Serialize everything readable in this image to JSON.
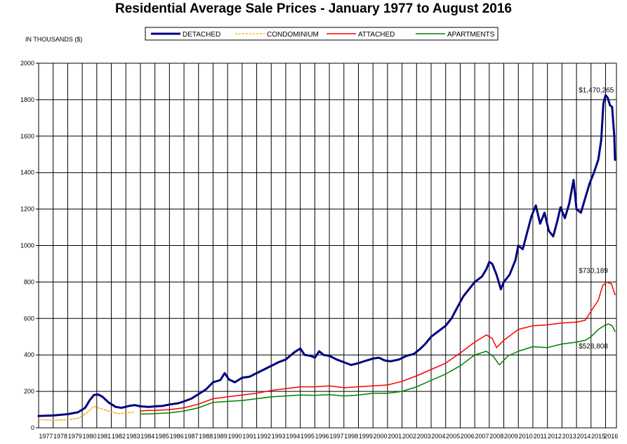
{
  "chart_data": {
    "type": "line",
    "title": "Residential Average Sale Prices  -  January 1977 to August 2016",
    "ylabel": "IN THOUSANDS ($)",
    "xlabel": "",
    "ylim": [
      0,
      2000
    ],
    "yticks": [
      0,
      200,
      400,
      600,
      800,
      1000,
      1200,
      1400,
      1600,
      1800,
      2000
    ],
    "xlim": [
      1977,
      2016.75
    ],
    "xticks": [
      "1977",
      "1978",
      "1979",
      "1980",
      "1981",
      "1982",
      "1983",
      "1984",
      "1985",
      "1986",
      "1987",
      "1988",
      "1989",
      "1990",
      "1991",
      "1992",
      "1993",
      "1994",
      "1995",
      "1996",
      "1997",
      "1998",
      "1999",
      "2000",
      "2001",
      "2002",
      "2003",
      "2004",
      "2005",
      "2006",
      "2007",
      "2008",
      "2009",
      "2010",
      "2011",
      "2012",
      "2013",
      "2014",
      "2015",
      "2016"
    ],
    "grid": true,
    "legend_position": "top-center",
    "series": [
      {
        "name": "DETACHED",
        "color": "#000080",
        "style": "solid-thick",
        "points": [
          [
            1977,
            65
          ],
          [
            1978,
            68
          ],
          [
            1979,
            75
          ],
          [
            1979.7,
            85
          ],
          [
            1980.2,
            110
          ],
          [
            1980.5,
            150
          ],
          [
            1980.8,
            180
          ],
          [
            1981.1,
            183
          ],
          [
            1981.4,
            170
          ],
          [
            1981.8,
            140
          ],
          [
            1982.3,
            115
          ],
          [
            1982.7,
            110
          ],
          [
            1983.2,
            120
          ],
          [
            1983.6,
            125
          ],
          [
            1984,
            118
          ],
          [
            1984.6,
            115
          ],
          [
            1985,
            118
          ],
          [
            1985.5,
            120
          ],
          [
            1986,
            128
          ],
          [
            1986.6,
            135
          ],
          [
            1987,
            145
          ],
          [
            1987.5,
            160
          ],
          [
            1988,
            185
          ],
          [
            1988.5,
            210
          ],
          [
            1989,
            250
          ],
          [
            1989.5,
            262
          ],
          [
            1989.8,
            300
          ],
          [
            1990.1,
            265
          ],
          [
            1990.5,
            250
          ],
          [
            1991,
            275
          ],
          [
            1991.5,
            280
          ],
          [
            1992,
            300
          ],
          [
            1992.5,
            320
          ],
          [
            1993,
            340
          ],
          [
            1993.5,
            360
          ],
          [
            1994,
            375
          ],
          [
            1994.3,
            395
          ],
          [
            1994.6,
            415
          ],
          [
            1995,
            435
          ],
          [
            1995.3,
            400
          ],
          [
            1995.7,
            395
          ],
          [
            1996,
            385
          ],
          [
            1996.3,
            420
          ],
          [
            1996.6,
            400
          ],
          [
            1997,
            395
          ],
          [
            1997.5,
            375
          ],
          [
            1998,
            360
          ],
          [
            1998.5,
            345
          ],
          [
            1999,
            355
          ],
          [
            1999.5,
            368
          ],
          [
            2000,
            380
          ],
          [
            2000.4,
            385
          ],
          [
            2000.8,
            370
          ],
          [
            2001.2,
            365
          ],
          [
            2001.8,
            375
          ],
          [
            2002.3,
            395
          ],
          [
            2002.8,
            405
          ],
          [
            2003.2,
            430
          ],
          [
            2003.6,
            460
          ],
          [
            2004,
            500
          ],
          [
            2004.5,
            530
          ],
          [
            2005,
            560
          ],
          [
            2005.4,
            600
          ],
          [
            2005.8,
            660
          ],
          [
            2006.2,
            720
          ],
          [
            2006.6,
            760
          ],
          [
            2007,
            800
          ],
          [
            2007.5,
            830
          ],
          [
            2007.8,
            870
          ],
          [
            2008,
            910
          ],
          [
            2008.2,
            900
          ],
          [
            2008.5,
            840
          ],
          [
            2008.8,
            760
          ],
          [
            2009,
            800
          ],
          [
            2009.4,
            840
          ],
          [
            2009.8,
            920
          ],
          [
            2010,
            1000
          ],
          [
            2010.3,
            980
          ],
          [
            2010.6,
            1070
          ],
          [
            2010.9,
            1160
          ],
          [
            2011.2,
            1220
          ],
          [
            2011.5,
            1120
          ],
          [
            2011.8,
            1180
          ],
          [
            2012.1,
            1080
          ],
          [
            2012.4,
            1050
          ],
          [
            2012.7,
            1140
          ],
          [
            2012.9,
            1210
          ],
          [
            2013.2,
            1150
          ],
          [
            2013.5,
            1230
          ],
          [
            2013.8,
            1360
          ],
          [
            2014,
            1200
          ],
          [
            2014.3,
            1180
          ],
          [
            2014.6,
            1260
          ],
          [
            2014.9,
            1340
          ],
          [
            2015.2,
            1400
          ],
          [
            2015.5,
            1470
          ],
          [
            2015.7,
            1580
          ],
          [
            2015.85,
            1780
          ],
          [
            2016,
            1825
          ],
          [
            2016.15,
            1810
          ],
          [
            2016.3,
            1770
          ],
          [
            2016.45,
            1760
          ],
          [
            2016.6,
            1600
          ],
          [
            2016.65,
            1470
          ]
        ]
      },
      {
        "name": "CONDOMINIUM",
        "color": "#FFA000",
        "style": "dashed",
        "points": [
          [
            1977,
            45
          ],
          [
            1978,
            42
          ],
          [
            1979,
            44
          ],
          [
            1979.7,
            52
          ],
          [
            1980.2,
            75
          ],
          [
            1980.5,
            95
          ],
          [
            1980.8,
            118
          ],
          [
            1981.1,
            110
          ],
          [
            1981.5,
            100
          ],
          [
            1982,
            88
          ],
          [
            1982.5,
            78
          ],
          [
            1983,
            82
          ],
          [
            1983.5,
            85
          ]
        ]
      },
      {
        "name": "ATTACHED",
        "color": "#FF0000",
        "style": "solid",
        "points": [
          [
            1984,
            92
          ],
          [
            1984.5,
            95
          ],
          [
            1985,
            95
          ],
          [
            1986,
            100
          ],
          [
            1987,
            110
          ],
          [
            1988,
            130
          ],
          [
            1989,
            160
          ],
          [
            1990,
            170
          ],
          [
            1991,
            180
          ],
          [
            1992,
            190
          ],
          [
            1993,
            205
          ],
          [
            1994,
            215
          ],
          [
            1995,
            225
          ],
          [
            1996,
            225
          ],
          [
            1997,
            230
          ],
          [
            1998,
            220
          ],
          [
            1999,
            225
          ],
          [
            2000,
            230
          ],
          [
            2001,
            235
          ],
          [
            2002,
            255
          ],
          [
            2003,
            285
          ],
          [
            2004,
            320
          ],
          [
            2005,
            355
          ],
          [
            2006,
            410
          ],
          [
            2007,
            470
          ],
          [
            2007.8,
            510
          ],
          [
            2008.2,
            490
          ],
          [
            2008.5,
            440
          ],
          [
            2009,
            480
          ],
          [
            2009.5,
            510
          ],
          [
            2010,
            540
          ],
          [
            2011,
            560
          ],
          [
            2012,
            565
          ],
          [
            2013,
            575
          ],
          [
            2014,
            580
          ],
          [
            2014.6,
            590
          ],
          [
            2015,
            640
          ],
          [
            2015.5,
            700
          ],
          [
            2015.8,
            780
          ],
          [
            2016.1,
            800
          ],
          [
            2016.4,
            790
          ],
          [
            2016.65,
            730
          ]
        ]
      },
      {
        "name": "APARTMENTS",
        "color": "#008000",
        "style": "solid",
        "points": [
          [
            1984,
            75
          ],
          [
            1985,
            78
          ],
          [
            1986,
            82
          ],
          [
            1987,
            92
          ],
          [
            1988,
            110
          ],
          [
            1989,
            140
          ],
          [
            1990,
            145
          ],
          [
            1991,
            150
          ],
          [
            1992,
            160
          ],
          [
            1993,
            170
          ],
          [
            1994,
            175
          ],
          [
            1995,
            180
          ],
          [
            1996,
            178
          ],
          [
            1997,
            182
          ],
          [
            1998,
            175
          ],
          [
            1999,
            180
          ],
          [
            2000,
            190
          ],
          [
            2001,
            190
          ],
          [
            2002,
            200
          ],
          [
            2003,
            225
          ],
          [
            2004,
            260
          ],
          [
            2005,
            295
          ],
          [
            2006,
            340
          ],
          [
            2007,
            400
          ],
          [
            2007.8,
            420
          ],
          [
            2008.3,
            390
          ],
          [
            2008.7,
            345
          ],
          [
            2009.3,
            395
          ],
          [
            2010,
            420
          ],
          [
            2011,
            445
          ],
          [
            2012,
            440
          ],
          [
            2013,
            460
          ],
          [
            2014,
            470
          ],
          [
            2014.6,
            480
          ],
          [
            2015,
            500
          ],
          [
            2015.5,
            540
          ],
          [
            2015.9,
            560
          ],
          [
            2016.2,
            570
          ],
          [
            2016.45,
            560
          ],
          [
            2016.65,
            529
          ]
        ]
      }
    ],
    "annotations": [
      {
        "text": "$1,470,265",
        "x": 2015.6,
        "y": 1840
      },
      {
        "text": "$730,189",
        "x": 2015.6,
        "y": 850
      },
      {
        "text": "$528,808",
        "x": 2015.6,
        "y": 435
      }
    ]
  }
}
